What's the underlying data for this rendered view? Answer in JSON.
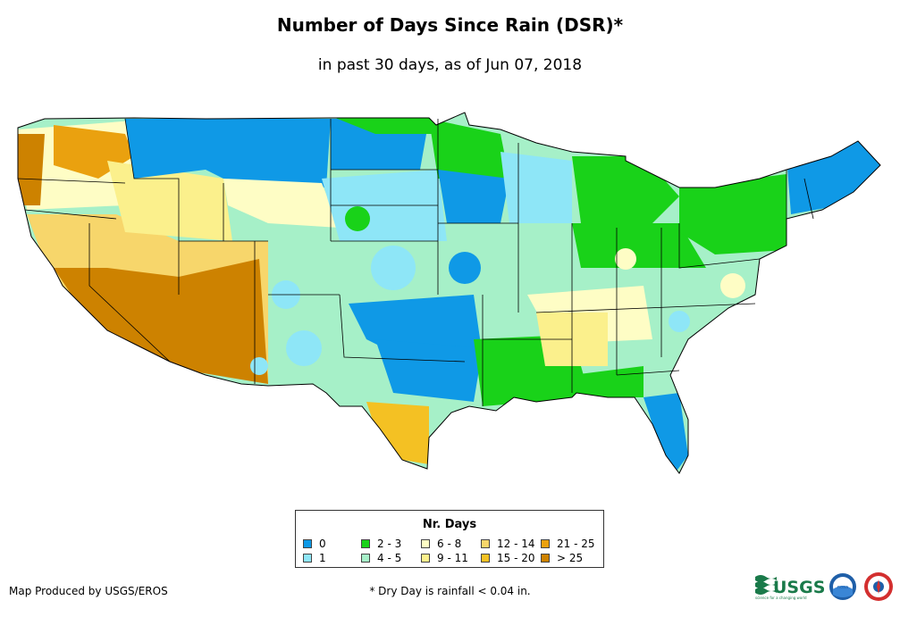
{
  "title": "Number of Days Since Rain (DSR)*",
  "subtitle": "in past 30 days, as of Jun 07, 2018",
  "legend": {
    "title": "Nr. Days",
    "classes": [
      {
        "label": "0",
        "color": "#0f99e6"
      },
      {
        "label": "1",
        "color": "#8ee6f7"
      },
      {
        "label": "2 - 3",
        "color": "#19d219"
      },
      {
        "label": "4 - 5",
        "color": "#a6f0c8"
      },
      {
        "label": "6 - 8",
        "color": "#fefdc5"
      },
      {
        "label": "9 - 11",
        "color": "#fbf08c"
      },
      {
        "label": "12 - 14",
        "color": "#f7d66b"
      },
      {
        "label": "15 - 20",
        "color": "#f4c123"
      },
      {
        "label": "21 - 25",
        "color": "#eaa10f"
      },
      {
        "label": "> 25",
        "color": "#cd8200"
      }
    ]
  },
  "credit": "Map Produced by USGS/EROS",
  "footnote": "* Dry Day is rainfall < 0.04 in.",
  "logos": {
    "usgs_text": "USGS",
    "usgs_tagline": "science for a changing world",
    "noaa_text": "noaa"
  }
}
